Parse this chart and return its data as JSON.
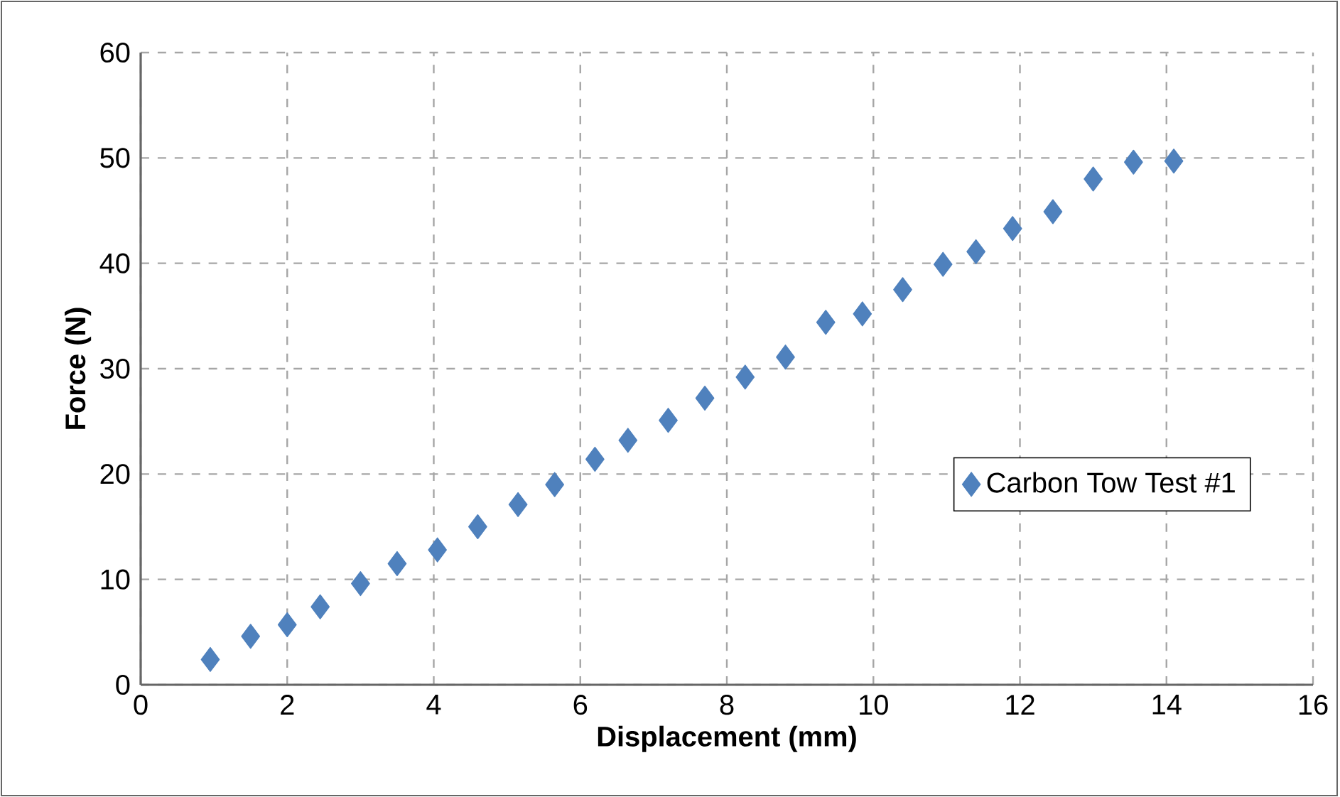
{
  "chart_data": {
    "type": "scatter",
    "xlabel": "Displacement (mm)",
    "ylabel": "Force (N)",
    "xlim": [
      0,
      16
    ],
    "ylim": [
      0,
      60
    ],
    "xticks": [
      0,
      2,
      4,
      6,
      8,
      10,
      12,
      14,
      16
    ],
    "yticks": [
      0,
      10,
      20,
      30,
      40,
      50,
      60
    ],
    "grid": true,
    "legend": "right",
    "marker": "diamond",
    "series": [
      {
        "name": "Carbon Tow Test #1",
        "color": "#4f81bd",
        "x": [
          0.95,
          1.5,
          2.0,
          2.45,
          3.0,
          3.5,
          4.05,
          4.6,
          5.15,
          5.65,
          6.2,
          6.65,
          7.2,
          7.7,
          8.25,
          8.8,
          9.35,
          9.85,
          10.4,
          10.95,
          11.4,
          11.9,
          12.45,
          13.0,
          13.55,
          14.1
        ],
        "values": [
          2.4,
          4.6,
          5.7,
          7.4,
          9.6,
          11.5,
          12.8,
          15.0,
          17.1,
          19.0,
          21.4,
          23.2,
          25.1,
          27.2,
          29.2,
          31.1,
          34.4,
          35.2,
          37.5,
          39.9,
          41.1,
          43.3,
          44.9,
          48.0,
          49.6,
          49.7
        ]
      }
    ]
  }
}
